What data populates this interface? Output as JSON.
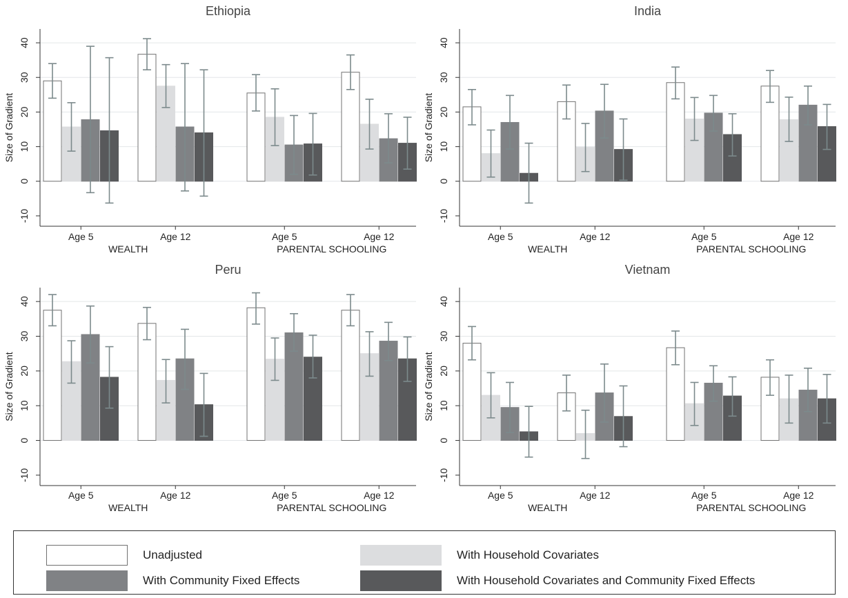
{
  "chart_data": {
    "type": "bar",
    "ylabel": "Size of Gradient",
    "ylim": [
      -13,
      44
    ],
    "yticks": [
      -10,
      0,
      10,
      20,
      30,
      40
    ],
    "group_labels": [
      "WEALTH",
      "PARENTAL SCHOOLING"
    ],
    "categories": [
      "Age 5",
      "Age 12",
      "Age 5",
      "Age 12"
    ],
    "legend": {
      "placement": "bottom",
      "entries": [
        {
          "name": "Unadjusted",
          "color": "#ffffff",
          "border": "#707070"
        },
        {
          "name": "With Household Covariates",
          "color": "#dcdddf",
          "border": "#dcdddf"
        },
        {
          "name": "With Community Fixed Effects",
          "color": "#808285",
          "border": "#808285"
        },
        {
          "name": "With Household Covariates and Community Fixed Effects",
          "color": "#58595b",
          "border": "#58595b"
        }
      ]
    },
    "panels": [
      {
        "title": "Ethiopia",
        "values": [
          [
            29,
            15.7,
            17.8,
            14.6
          ],
          [
            36.7,
            27.5,
            15.7,
            14
          ],
          [
            25.5,
            18.5,
            10.5,
            10.8
          ],
          [
            31.5,
            16.5,
            12.3,
            11
          ]
        ],
        "ci_low": [
          [
            24,
            8.7,
            -3.3,
            -6.3
          ],
          [
            32.2,
            21.3,
            -2.8,
            -4.3
          ],
          [
            20.3,
            10.3,
            2,
            1.8
          ],
          [
            26.5,
            9.3,
            5.3,
            3.5
          ]
        ],
        "ci_high": [
          [
            34,
            22.7,
            39,
            35.7
          ],
          [
            41.2,
            33.7,
            34,
            32.2
          ],
          [
            30.8,
            26.7,
            19,
            19.6
          ],
          [
            36.5,
            23.7,
            19.5,
            18.5
          ]
        ]
      },
      {
        "title": "India",
        "values": [
          [
            21.5,
            8,
            17,
            2.3
          ],
          [
            23,
            9.8,
            20.3,
            9.2
          ],
          [
            28.5,
            18,
            19.7,
            13.5
          ],
          [
            27.5,
            17.8,
            22,
            15.8
          ]
        ],
        "ci_low": [
          [
            16.3,
            1.2,
            9.3,
            -6.3
          ],
          [
            18,
            2.8,
            12.5,
            0.3
          ],
          [
            23.8,
            11.8,
            14.5,
            7.3
          ],
          [
            22.8,
            11.5,
            16.3,
            9.2
          ]
        ],
        "ci_high": [
          [
            26.5,
            14.8,
            24.8,
            11
          ],
          [
            27.8,
            16.7,
            28,
            18
          ],
          [
            33,
            24.2,
            24.8,
            19.5
          ],
          [
            32,
            24.3,
            27.5,
            22.2
          ]
        ]
      },
      {
        "title": "Peru",
        "values": [
          [
            37.5,
            22.7,
            30.5,
            18.2
          ],
          [
            33.7,
            17.3,
            23.5,
            10.3
          ],
          [
            38.2,
            23.4,
            31,
            24
          ],
          [
            37.5,
            25,
            28.6,
            23.5
          ]
        ],
        "ci_low": [
          [
            33,
            16.5,
            22.3,
            9.3
          ],
          [
            29,
            10.8,
            14.7,
            1.2
          ],
          [
            33.5,
            17.3,
            25.7,
            18
          ],
          [
            33,
            18.5,
            23,
            17
          ]
        ],
        "ci_high": [
          [
            42,
            28.7,
            38.7,
            27
          ],
          [
            38.3,
            23.3,
            32,
            19.3
          ],
          [
            42.5,
            29.5,
            36.5,
            30.3
          ],
          [
            42,
            31.3,
            34,
            29.8
          ]
        ]
      },
      {
        "title": "Vietnam",
        "values": [
          [
            28,
            13,
            9.5,
            2.5
          ],
          [
            13.7,
            2,
            13.7,
            6.9
          ],
          [
            26.7,
            10.6,
            16.5,
            12.8
          ],
          [
            18.2,
            12,
            14.5,
            12
          ]
        ],
        "ci_low": [
          [
            23.2,
            6.5,
            2.3,
            -4.8
          ],
          [
            8.5,
            -5.2,
            5.3,
            -1.8
          ],
          [
            21.8,
            4.3,
            11.3,
            7
          ],
          [
            13,
            5,
            8.3,
            5
          ]
        ],
        "ci_high": [
          [
            32.8,
            19.5,
            16.7,
            9.8
          ],
          [
            18.8,
            8.7,
            22,
            15.7
          ],
          [
            31.5,
            16.7,
            21.5,
            18.3
          ],
          [
            23.2,
            18.8,
            20.8,
            19
          ]
        ]
      }
    ]
  }
}
